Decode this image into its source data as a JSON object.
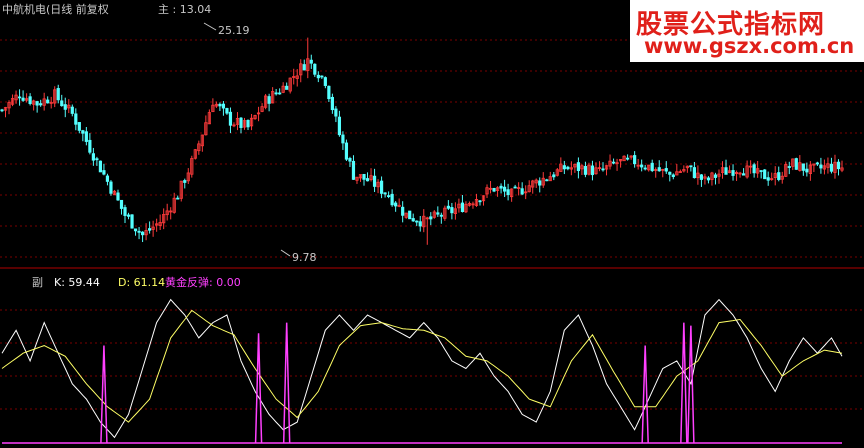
{
  "header": {
    "title": "中航机电(日线 前复权",
    "main_label": "主 : 13.04"
  },
  "annotations": {
    "high": "25.19",
    "low": "9.78"
  },
  "indicator": {
    "name": "副",
    "k_label": "K: 59.44",
    "d_label": "D: 61.14",
    "gold_label": "黄金反弹: 0.00"
  },
  "watermark": {
    "title": "股票公式指标网",
    "url": "www.gszx.com.cn"
  },
  "colors": {
    "up": "#ff3b3b",
    "down": "#54ffff",
    "k_line": "#ffffff",
    "d_line": "#ffff66",
    "gold": "#ff40ff",
    "grid": "#7a0000",
    "text": "#c8c8c8",
    "watermark": "#e0201a"
  },
  "chart_data": [
    {
      "type": "line",
      "name": "price",
      "ylim": [
        8.5,
        26.5
      ],
      "x_count": 240,
      "anchors": [
        [
          0,
          19.8
        ],
        [
          5,
          21.0
        ],
        [
          10,
          20.3
        ],
        [
          15,
          20.9
        ],
        [
          20,
          19.5
        ],
        [
          25,
          17.0
        ],
        [
          30,
          14.5
        ],
        [
          35,
          12.0
        ],
        [
          40,
          10.5
        ],
        [
          45,
          11.5
        ],
        [
          50,
          13.5
        ],
        [
          55,
          16.5
        ],
        [
          60,
          20.5
        ],
        [
          65,
          19.0
        ],
        [
          70,
          18.5
        ],
        [
          75,
          20.5
        ],
        [
          80,
          21.5
        ],
        [
          87,
          23.5
        ],
        [
          92,
          22.0
        ],
        [
          96,
          18.0
        ],
        [
          100,
          15.0
        ],
        [
          105,
          14.5
        ],
        [
          110,
          13.5
        ],
        [
          115,
          12.0
        ],
        [
          120,
          11.5
        ],
        [
          125,
          12.0
        ],
        [
          130,
          12.5
        ],
        [
          135,
          13.3
        ],
        [
          140,
          14.0
        ],
        [
          145,
          13.5
        ],
        [
          150,
          14.2
        ],
        [
          155,
          14.8
        ],
        [
          160,
          15.5
        ],
        [
          165,
          15.5
        ],
        [
          170,
          15.2
        ],
        [
          175,
          15.9
        ],
        [
          180,
          16.0
        ],
        [
          185,
          15.5
        ],
        [
          190,
          15.0
        ],
        [
          195,
          15.5
        ],
        [
          200,
          14.5
        ],
        [
          205,
          15.2
        ],
        [
          210,
          15.5
        ],
        [
          215,
          15.0
        ],
        [
          220,
          14.8
        ],
        [
          225,
          15.8
        ],
        [
          230,
          15.3
        ],
        [
          235,
          15.6
        ],
        [
          239,
          15.5
        ]
      ],
      "high": 25.19,
      "low": 9.78
    },
    {
      "type": "line",
      "name": "KD",
      "ylim": [
        0,
        100
      ],
      "series": [
        {
          "name": "K",
          "anchors": [
            [
              0,
              60
            ],
            [
              4,
              75
            ],
            [
              8,
              55
            ],
            [
              12,
              80
            ],
            [
              16,
              60
            ],
            [
              20,
              40
            ],
            [
              24,
              30
            ],
            [
              28,
              15
            ],
            [
              32,
              5
            ],
            [
              36,
              20
            ],
            [
              40,
              50
            ],
            [
              44,
              80
            ],
            [
              48,
              95
            ],
            [
              52,
              85
            ],
            [
              56,
              70
            ],
            [
              60,
              80
            ],
            [
              64,
              85
            ],
            [
              68,
              55
            ],
            [
              72,
              35
            ],
            [
              76,
              20
            ],
            [
              80,
              10
            ],
            [
              84,
              15
            ],
            [
              88,
              45
            ],
            [
              92,
              75
            ],
            [
              96,
              85
            ],
            [
              100,
              75
            ],
            [
              104,
              85
            ],
            [
              108,
              80
            ],
            [
              112,
              75
            ],
            [
              116,
              70
            ],
            [
              120,
              80
            ],
            [
              124,
              70
            ],
            [
              128,
              55
            ],
            [
              132,
              50
            ],
            [
              136,
              60
            ],
            [
              140,
              45
            ],
            [
              144,
              35
            ],
            [
              148,
              20
            ],
            [
              152,
              15
            ],
            [
              156,
              35
            ],
            [
              160,
              75
            ],
            [
              164,
              85
            ],
            [
              168,
              65
            ],
            [
              172,
              40
            ],
            [
              176,
              25
            ],
            [
              180,
              10
            ],
            [
              184,
              30
            ],
            [
              188,
              50
            ],
            [
              192,
              55
            ],
            [
              196,
              40
            ],
            [
              200,
              85
            ],
            [
              204,
              95
            ],
            [
              208,
              85
            ],
            [
              212,
              70
            ],
            [
              216,
              50
            ],
            [
              220,
              35
            ],
            [
              224,
              55
            ],
            [
              228,
              70
            ],
            [
              232,
              60
            ],
            [
              236,
              70
            ],
            [
              239,
              58
            ]
          ]
        },
        {
          "name": "D",
          "anchors": [
            [
              0,
              50
            ],
            [
              6,
              60
            ],
            [
              12,
              65
            ],
            [
              18,
              58
            ],
            [
              24,
              40
            ],
            [
              30,
              25
            ],
            [
              36,
              15
            ],
            [
              42,
              30
            ],
            [
              48,
              70
            ],
            [
              54,
              88
            ],
            [
              60,
              78
            ],
            [
              66,
              72
            ],
            [
              72,
              50
            ],
            [
              78,
              30
            ],
            [
              84,
              18
            ],
            [
              90,
              35
            ],
            [
              96,
              65
            ],
            [
              102,
              78
            ],
            [
              108,
              80
            ],
            [
              114,
              76
            ],
            [
              120,
              75
            ],
            [
              126,
              70
            ],
            [
              132,
              58
            ],
            [
              138,
              55
            ],
            [
              144,
              45
            ],
            [
              150,
              30
            ],
            [
              156,
              25
            ],
            [
              162,
              55
            ],
            [
              168,
              72
            ],
            [
              174,
              48
            ],
            [
              180,
              25
            ],
            [
              186,
              25
            ],
            [
              192,
              45
            ],
            [
              198,
              55
            ],
            [
              204,
              80
            ],
            [
              210,
              82
            ],
            [
              216,
              65
            ],
            [
              222,
              45
            ],
            [
              228,
              55
            ],
            [
              234,
              62
            ],
            [
              239,
              60
            ]
          ]
        }
      ],
      "gold_spikes": [
        {
          "x": 29,
          "value": 65
        },
        {
          "x": 73,
          "value": 73
        },
        {
          "x": 81,
          "value": 80
        },
        {
          "x": 183,
          "value": 65
        },
        {
          "x": 194,
          "value": 80
        },
        {
          "x": 196,
          "value": 78
        }
      ]
    }
  ]
}
